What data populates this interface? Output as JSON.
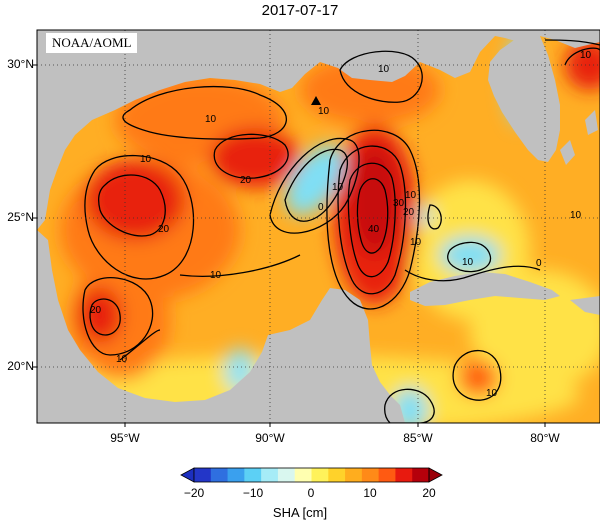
{
  "title": "2017-07-17",
  "credit": "NOAA/AOML",
  "lat_labels": [
    "30°N",
    "25°N",
    "20°N"
  ],
  "lon_labels": [
    "95°W",
    "90°W",
    "85°W",
    "80°W"
  ],
  "colorbar": {
    "ticks": [
      "−20",
      "−10",
      "0",
      "10",
      "20"
    ],
    "label": "SHA [cm]",
    "colors": [
      "#2336c8",
      "#2f6fe0",
      "#3aa0ee",
      "#5cd0f5",
      "#a6ecf7",
      "#d9f7ef",
      "#ffffb0",
      "#fff25a",
      "#ffd22a",
      "#ffad1e",
      "#ff8a18",
      "#ff5a12",
      "#e81a0f",
      "#b5000b"
    ]
  },
  "contour_labels": [
    "10",
    "10",
    "10",
    "20",
    "10",
    "20",
    "10",
    "20",
    "10",
    "0",
    "10",
    "20",
    "30",
    "40",
    "10",
    "10",
    "10",
    "0",
    "10",
    "10",
    "10"
  ],
  "colors": {
    "land": "#c0c0c0",
    "ocean_base": "#ffb22a",
    "contour": "#000000"
  }
}
